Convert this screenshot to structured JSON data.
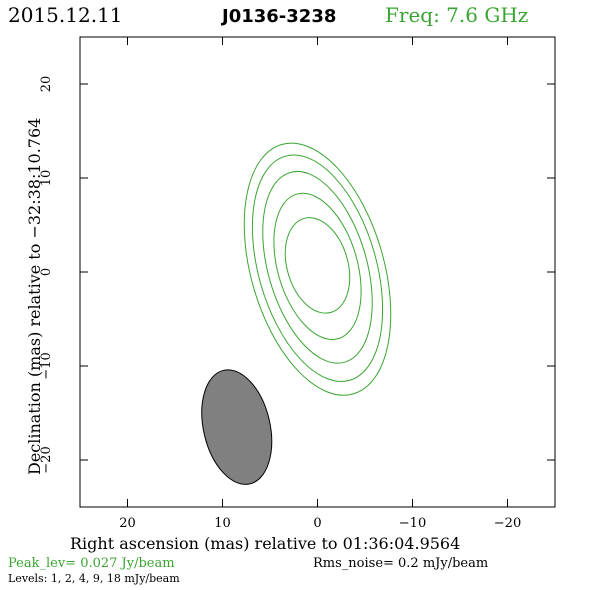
{
  "header": {
    "date": "2015.12.11",
    "source": "J0136-3238",
    "freq": "Freq: 7.6 GHz"
  },
  "footer": {
    "peak": "Peak_lev=  0.027 Jy/beam",
    "rms": "Rms_noise=  0.2 mJy/beam",
    "levels": "Levels:   1,   2,   4,   9,   18 mJy/beam"
  },
  "colors": {
    "contour": "#3aa532",
    "beam_fill": "#808080",
    "axes": "#000000",
    "peak_text": "#3aa532",
    "freq_text": "#3aa532"
  },
  "chart_data": {
    "type": "contour",
    "xlabel": "Right ascension (mas) relative to 01:36:04.9564",
    "ylabel": "Declination (mas) relative to −32:38:10.764",
    "xlim": [
      25,
      -25
    ],
    "ylim": [
      -25,
      25
    ],
    "xticks": [
      20,
      10,
      0,
      -10,
      -20
    ],
    "xtick_labels": [
      "20",
      "10",
      "0",
      "−10",
      "−20"
    ],
    "yticks": [
      20,
      10,
      0,
      -10,
      -20
    ],
    "ytick_labels": [
      "20",
      "10",
      "0",
      "−10",
      "−20"
    ],
    "levels_mJy": [
      1,
      2,
      4,
      9,
      18
    ],
    "contours": [
      {
        "level": 1,
        "cx": 0.0,
        "cy": 0.3,
        "a": 7.0,
        "b": 13.8,
        "pa_deg": 16
      },
      {
        "level": 2,
        "cx": 0.0,
        "cy": 0.4,
        "a": 6.2,
        "b": 12.4,
        "pa_deg": 16
      },
      {
        "level": 4,
        "cx": 0.0,
        "cy": 0.5,
        "a": 5.2,
        "b": 10.5,
        "pa_deg": 16
      },
      {
        "level": 9,
        "cx": 0.0,
        "cy": 0.6,
        "a": 4.2,
        "b": 8.0,
        "pa_deg": 16
      },
      {
        "level": 18,
        "cx": 0.0,
        "cy": 0.7,
        "a": 3.2,
        "b": 5.2,
        "pa_deg": 16
      }
    ],
    "beam": {
      "cx": 8.5,
      "cy": -16.5,
      "a": 3.5,
      "b": 6.2,
      "pa_deg": 13
    }
  }
}
